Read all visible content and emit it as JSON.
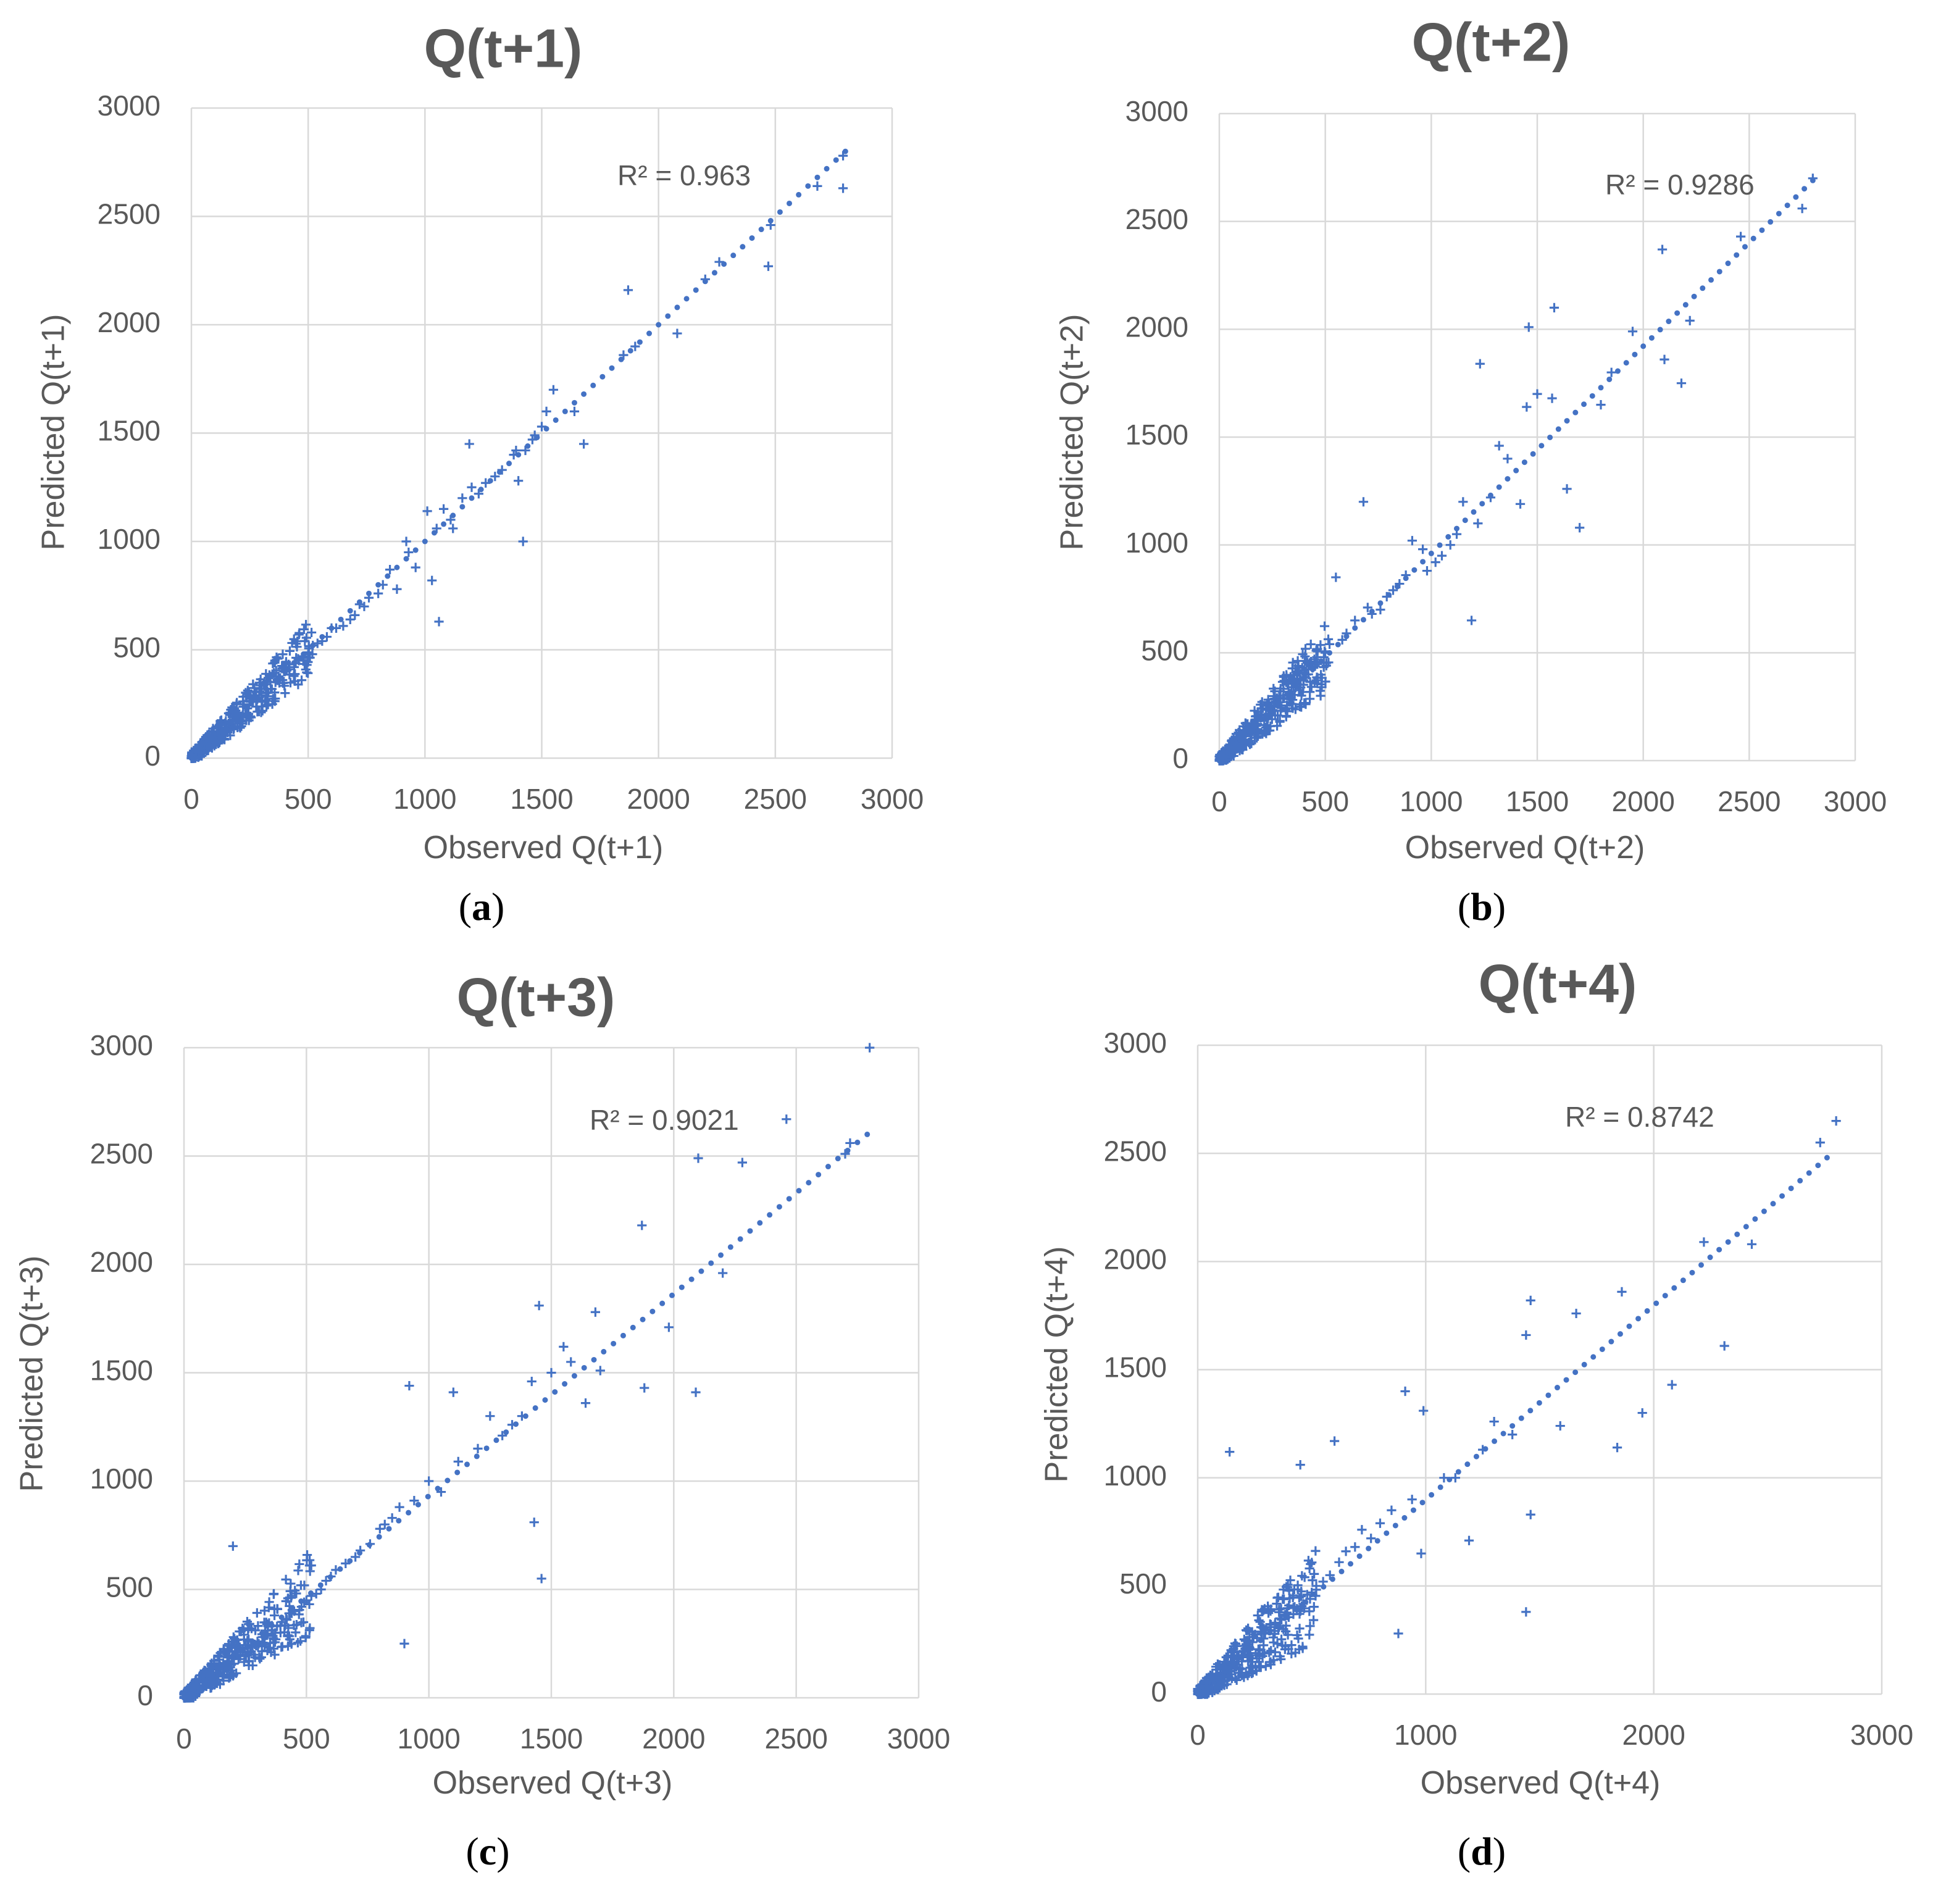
{
  "figure": {
    "marker_color": "#4472c4",
    "text_color": "#595959",
    "grid_color": "#d9d9d9"
  },
  "chart_data": [
    {
      "type": "scatter",
      "panel_label": "a",
      "title": "Q(t+1)",
      "xlabel": "Observed Q(t+1)",
      "ylabel": "Predicted Q(t+1)",
      "xlim": [
        0,
        3000
      ],
      "ylim": [
        0,
        3000
      ],
      "xticks": [
        0,
        500,
        1000,
        1500,
        2000,
        2500,
        3000
      ],
      "yticks": [
        0,
        500,
        1000,
        1500,
        2000,
        2500,
        3000
      ],
      "grid": true,
      "r_squared_label": "R² = 0.963",
      "trendline": {
        "x": [
          0,
          2800
        ],
        "y": [
          0,
          2800
        ],
        "style": "dotted"
      },
      "series": [
        {
          "marker": "+",
          "x": [
            2790,
            2790,
            2680,
            2470,
            2480,
            2260,
            2200,
            2080,
            1870,
            1850,
            1900,
            1680,
            1640,
            1550,
            1520,
            1500,
            1470,
            1430,
            1420,
            1400,
            1390,
            1380,
            1460,
            1330,
            1300,
            1260,
            1200,
            1160,
            1120,
            1190,
            1230,
            1110,
            1050,
            1080,
            1010,
            1060,
            1030,
            960,
            930,
            920,
            880,
            850,
            820,
            800,
            760,
            740,
            720,
            700,
            680,
            650,
            620,
            600,
            580,
            560,
            540,
            520,
            500,
            480,
            460,
            440,
            420,
            400,
            380,
            360,
            340,
            320,
            300,
            290,
            280,
            260,
            240,
            220,
            200,
            180,
            160,
            140,
            120,
            100,
            80,
            60,
            40,
            20,
            10,
            5
          ],
          "y": [
            2780,
            2630,
            2640,
            2270,
            2460,
            2290,
            2210,
            1960,
            2160,
            1860,
            1900,
            1450,
            1600,
            1700,
            1600,
            1530,
            1490,
            1420,
            1000,
            1280,
            1420,
            1400,
            1470,
            1330,
            1300,
            1270,
            1250,
            1200,
            1060,
            1450,
            1220,
            1100,
            1060,
            1150,
            1140,
            630,
            820,
            880,
            950,
            1000,
            780,
            870,
            800,
            760,
            740,
            700,
            710,
            660,
            640,
            610,
            600,
            600,
            560,
            540,
            530,
            520,
            480,
            470,
            450,
            420,
            410,
            400,
            370,
            350,
            320,
            300,
            290,
            280,
            260,
            260,
            230,
            200,
            210,
            190,
            160,
            130,
            120,
            100,
            80,
            60,
            40,
            20,
            10,
            5
          ]
        }
      ]
    },
    {
      "type": "scatter",
      "panel_label": "b",
      "title": "Q(t+2)",
      "xlabel": "Observed Q(t+2)",
      "ylabel": "Predicted Q(t+2)",
      "xlim": [
        0,
        3000
      ],
      "ylim": [
        0,
        3000
      ],
      "xticks": [
        0,
        500,
        1000,
        1500,
        2000,
        2500,
        3000
      ],
      "yticks": [
        0,
        500,
        1000,
        1500,
        2000,
        2500,
        3000
      ],
      "grid": true,
      "r_squared_label": "R² = 0.9286",
      "trendline": {
        "x": [
          0,
          2800
        ],
        "y": [
          0,
          2690
        ],
        "style": "dotted"
      },
      "series": [
        {
          "marker": "+",
          "x": [
            2800,
            2750,
            2460,
            2220,
            2180,
            2090,
            2100,
            1950,
            1850,
            1800,
            1700,
            1640,
            1580,
            1570,
            1500,
            1460,
            1450,
            1420,
            1360,
            1320,
            1280,
            1230,
            1220,
            1190,
            1150,
            1120,
            1090,
            1050,
            1020,
            980,
            960,
            910,
            880,
            850,
            820,
            790,
            760,
            720,
            700,
            680,
            640,
            600,
            580,
            550,
            520,
            500,
            460,
            440,
            420,
            400,
            380,
            360,
            340,
            320,
            300,
            280,
            260,
            240,
            220,
            200,
            180,
            160,
            140,
            120,
            100,
            80,
            60,
            40,
            20,
            10
          ],
          "y": [
            2700,
            2560,
            2430,
            2040,
            1750,
            2370,
            1860,
            1990,
            1800,
            1650,
            1080,
            1260,
            2100,
            1680,
            1700,
            2010,
            1640,
            1190,
            1400,
            1460,
            1220,
            1840,
            1100,
            650,
            1200,
            1050,
            1000,
            950,
            920,
            880,
            980,
            1020,
            860,
            820,
            790,
            760,
            700,
            680,
            710,
            1200,
            650,
            590,
            560,
            850,
            540,
            500,
            480,
            430,
            400,
            420,
            380,
            340,
            320,
            300,
            290,
            270,
            250,
            230,
            210,
            200,
            170,
            160,
            130,
            120,
            90,
            70,
            50,
            40,
            20,
            10
          ]
        }
      ]
    },
    {
      "type": "scatter",
      "panel_label": "c",
      "title": "Q(t+3)",
      "xlabel": "Observed Q(t+3)",
      "ylabel": "Predicted Q(t+3)",
      "xlim": [
        0,
        3000
      ],
      "ylim": [
        0,
        3000
      ],
      "xticks": [
        0,
        500,
        1000,
        1500,
        2000,
        2500,
        3000
      ],
      "yticks": [
        0,
        500,
        1000,
        1500,
        2000,
        2500,
        3000
      ],
      "grid": true,
      "r_squared_label": "R² = 0.9021",
      "trendline": {
        "x": [
          0,
          2790
        ],
        "y": [
          0,
          2600
        ],
        "style": "dotted"
      },
      "series": [
        {
          "marker": "+",
          "x": [
            2800,
            2720,
            2700,
            2460,
            2280,
            2200,
            2100,
            2090,
            1980,
            1880,
            1870,
            1700,
            1680,
            1640,
            1580,
            1550,
            1500,
            1450,
            1460,
            1420,
            1430,
            1380,
            1340,
            1300,
            1250,
            1200,
            1120,
            1100,
            1050,
            1000,
            940,
            920,
            900,
            880,
            850,
            820,
            800,
            760,
            720,
            700,
            660,
            620,
            600,
            580,
            560,
            540,
            520,
            500,
            480,
            450,
            440,
            420,
            400,
            380,
            360,
            340,
            320,
            300,
            280,
            260,
            240,
            220,
            200,
            180,
            160,
            140,
            120,
            100,
            80,
            60,
            40,
            20,
            10
          ],
          "y": [
            3000,
            2560,
            2510,
            2670,
            2470,
            1960,
            2490,
            1410,
            1710,
            1430,
            2180,
            1510,
            1780,
            1360,
            1550,
            1620,
            1500,
            1810,
            550,
            1460,
            810,
            1300,
            1260,
            1210,
            1300,
            1150,
            1090,
            1410,
            950,
            1000,
            910,
            1440,
            250,
            880,
            830,
            800,
            780,
            710,
            680,
            650,
            620,
            590,
            560,
            540,
            500,
            480,
            470,
            450,
            420,
            400,
            390,
            360,
            350,
            330,
            310,
            290,
            280,
            260,
            240,
            230,
            210,
            200,
            700,
            170,
            160,
            130,
            110,
            90,
            70,
            50,
            40,
            20,
            10
          ]
        }
      ]
    },
    {
      "type": "scatter",
      "panel_label": "d",
      "title": "Q(t+4)",
      "xlabel": "Observed Q(t+4)",
      "ylabel": "Predicted Q(t+4)",
      "xlim": [
        0,
        3000
      ],
      "ylim": [
        0,
        3000
      ],
      "xticks": [
        0,
        1000,
        2000,
        3000
      ],
      "yticks": [
        0,
        500,
        1000,
        1500,
        2000,
        2500,
        3000
      ],
      "grid": true,
      "r_squared_label": "R² = 0.8742",
      "trendline": {
        "x": [
          0,
          2760
        ],
        "y": [
          0,
          2480
        ],
        "style": "dotted"
      },
      "series": [
        {
          "marker": "+",
          "x": [
            2800,
            2730,
            2430,
            2220,
            2310,
            2080,
            1950,
            1860,
            1840,
            1660,
            1590,
            1460,
            1440,
            1460,
            1440,
            1380,
            1300,
            1250,
            1190,
            1130,
            1080,
            990,
            980,
            940,
            910,
            880,
            850,
            800,
            760,
            720,
            690,
            650,
            620,
            600,
            580,
            550,
            520,
            500,
            480,
            450,
            420,
            400,
            380,
            360,
            340,
            320,
            300,
            280,
            260,
            240,
            220,
            200,
            180,
            160,
            140,
            120,
            100,
            80,
            60,
            40,
            20,
            10
          ],
          "y": [
            2650,
            2550,
            2080,
            2090,
            1610,
            1430,
            1300,
            1860,
            1140,
            1760,
            1240,
            1820,
            1660,
            830,
            380,
            1200,
            1260,
            1130,
            710,
            1000,
            1000,
            1310,
            650,
            900,
            1400,
            280,
            850,
            790,
            720,
            760,
            680,
            660,
            610,
            1170,
            550,
            520,
            500,
            470,
            460,
            1060,
            400,
            410,
            360,
            350,
            330,
            310,
            300,
            280,
            260,
            240,
            230,
            200,
            180,
            170,
            1120,
            120,
            100,
            80,
            60,
            40,
            20,
            10
          ]
        }
      ]
    }
  ]
}
